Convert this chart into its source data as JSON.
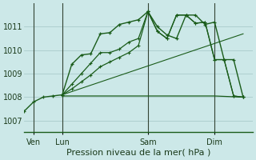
{
  "title": "Pression niveau de la mer( hPa )",
  "bg_color": "#cce8e8",
  "grid_color": "#aacccc",
  "line_color": "#1a5c1a",
  "ylim": [
    1006.5,
    1012.0
  ],
  "yticks": [
    1007,
    1008,
    1009,
    1010,
    1011
  ],
  "xlim": [
    0,
    24
  ],
  "day_labels": [
    "Ven",
    "Lun",
    "Sam",
    "Dim"
  ],
  "day_positions": [
    1,
    4,
    13,
    20
  ],
  "vline_positions": [
    1,
    4,
    13,
    20
  ],
  "series0": {
    "x": [
      0,
      1,
      2,
      3,
      4,
      5,
      6,
      7,
      8,
      9,
      10,
      11,
      12,
      13,
      14,
      15,
      16,
      17,
      18,
      19,
      20,
      21,
      22,
      23
    ],
    "y": [
      1007.4,
      1007.8,
      1008.0,
      1008.05,
      1008.1,
      1009.4,
      1009.8,
      1009.85,
      1010.7,
      1010.75,
      1011.1,
      1011.2,
      1011.3,
      1011.65,
      1011.0,
      1010.65,
      1010.5,
      1011.5,
      1011.5,
      1011.1,
      1011.2,
      1009.6,
      1009.6,
      1008.0
    ]
  },
  "series1": {
    "x": [
      4,
      5,
      6,
      7,
      8,
      9,
      10,
      11,
      12,
      13,
      14,
      15,
      16,
      17,
      18,
      19,
      20,
      21,
      22,
      23
    ],
    "y": [
      1008.1,
      1008.55,
      1009.0,
      1009.45,
      1009.9,
      1009.9,
      1010.05,
      1010.35,
      1010.5,
      1011.65,
      1010.8,
      1010.5,
      1011.5,
      1011.5,
      1011.15,
      1011.2,
      1009.6,
      1009.6,
      1008.05,
      1008.0
    ]
  },
  "series2": {
    "x": [
      4,
      5,
      6,
      7,
      8,
      9,
      10,
      11,
      12,
      13,
      14,
      15,
      16,
      17,
      18,
      19,
      20,
      21,
      22,
      23
    ],
    "y": [
      1008.1,
      1008.35,
      1008.65,
      1008.95,
      1009.3,
      1009.5,
      1009.7,
      1009.9,
      1010.2,
      1011.65,
      1010.8,
      1010.5,
      1011.5,
      1011.5,
      1011.15,
      1011.2,
      1009.6,
      1009.6,
      1008.05,
      1008.0
    ]
  },
  "series3_flat": {
    "x": [
      4,
      13,
      20,
      23
    ],
    "y": [
      1008.05,
      1008.05,
      1008.05,
      1008.0
    ]
  },
  "series4_linear": {
    "x": [
      4,
      23
    ],
    "y": [
      1008.1,
      1010.7
    ]
  }
}
